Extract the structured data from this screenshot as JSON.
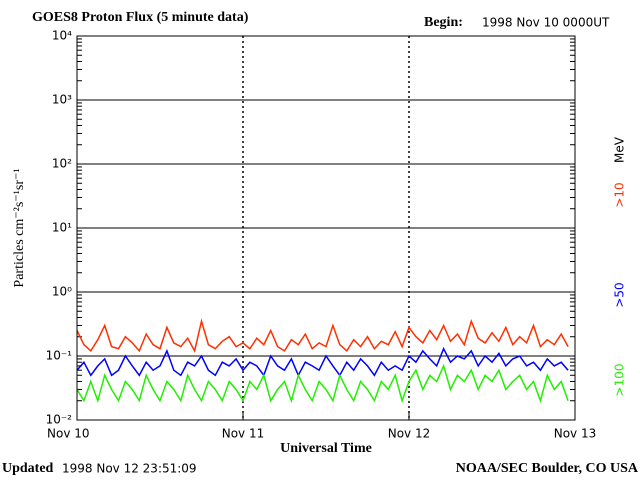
{
  "chart_data": {
    "type": "line",
    "title": "GOES8 Proton Flux (5 minute data)",
    "begin_label": "Begin:",
    "begin_value": "1998 Nov 10 0000UT",
    "ylabel": "Particles cm⁻²s⁻¹sr⁻¹",
    "xlabel": "Universal Time",
    "updated_label": "Updated",
    "updated_value": "1998 Nov 12 23:51:09",
    "credit": "NOAA/SEC Boulder, CO USA",
    "legend_unit": "MeV",
    "log_scale": true,
    "grid": true,
    "ylim": [
      0.01,
      10000
    ],
    "yticks": [
      {
        "value": 0.01,
        "label": "10⁻²"
      },
      {
        "value": 0.1,
        "label": "10⁻¹"
      },
      {
        "value": 1,
        "label": "10⁰"
      },
      {
        "value": 10,
        "label": "10¹"
      },
      {
        "value": 100,
        "label": "10²"
      },
      {
        "value": 1000,
        "label": "10³"
      },
      {
        "value": 10000,
        "label": "10⁴"
      }
    ],
    "xlim": [
      0,
      72
    ],
    "xticks": [
      {
        "value": 0,
        "label": "Nov 10"
      },
      {
        "value": 24,
        "label": "Nov 11"
      },
      {
        "value": 48,
        "label": "Nov 12"
      },
      {
        "value": 72,
        "label": "Nov 13"
      }
    ],
    "x": [
      0,
      1,
      2,
      3,
      4,
      5,
      6,
      7,
      8,
      9,
      10,
      11,
      12,
      13,
      14,
      15,
      16,
      17,
      18,
      19,
      20,
      21,
      22,
      23,
      24,
      25,
      26,
      27,
      28,
      29,
      30,
      31,
      32,
      33,
      34,
      35,
      36,
      37,
      38,
      39,
      40,
      41,
      42,
      43,
      44,
      45,
      46,
      47,
      48,
      49,
      50,
      51,
      52,
      53,
      54,
      55,
      56,
      57,
      58,
      59,
      60,
      61,
      62,
      63,
      64,
      65,
      66,
      67,
      68,
      69,
      70,
      71
    ],
    "series": [
      {
        "name": ">10",
        "color": "#ff3000",
        "values": [
          0.25,
          0.15,
          0.12,
          0.18,
          0.3,
          0.14,
          0.13,
          0.2,
          0.16,
          0.12,
          0.22,
          0.15,
          0.13,
          0.28,
          0.16,
          0.14,
          0.19,
          0.12,
          0.35,
          0.15,
          0.13,
          0.17,
          0.2,
          0.14,
          0.16,
          0.13,
          0.19,
          0.15,
          0.25,
          0.14,
          0.12,
          0.18,
          0.15,
          0.22,
          0.13,
          0.16,
          0.14,
          0.3,
          0.15,
          0.12,
          0.18,
          0.14,
          0.2,
          0.13,
          0.17,
          0.15,
          0.24,
          0.14,
          0.28,
          0.2,
          0.16,
          0.25,
          0.18,
          0.3,
          0.17,
          0.22,
          0.15,
          0.35,
          0.19,
          0.16,
          0.23,
          0.17,
          0.28,
          0.15,
          0.2,
          0.16,
          0.3,
          0.14,
          0.18,
          0.15,
          0.22,
          0.14
        ]
      },
      {
        "name": ">50",
        "color": "#0000ff",
        "values": [
          0.06,
          0.08,
          0.05,
          0.07,
          0.09,
          0.05,
          0.06,
          0.1,
          0.07,
          0.05,
          0.08,
          0.06,
          0.07,
          0.12,
          0.06,
          0.05,
          0.08,
          0.07,
          0.1,
          0.06,
          0.05,
          0.08,
          0.07,
          0.09,
          0.06,
          0.08,
          0.07,
          0.05,
          0.1,
          0.07,
          0.06,
          0.09,
          0.05,
          0.08,
          0.07,
          0.06,
          0.1,
          0.07,
          0.05,
          0.08,
          0.06,
          0.09,
          0.07,
          0.05,
          0.08,
          0.06,
          0.07,
          0.06,
          0.1,
          0.08,
          0.12,
          0.09,
          0.07,
          0.13,
          0.08,
          0.1,
          0.09,
          0.12,
          0.07,
          0.1,
          0.08,
          0.11,
          0.07,
          0.09,
          0.1,
          0.07,
          0.08,
          0.06,
          0.09,
          0.07,
          0.08,
          0.06
        ]
      },
      {
        "name": ">100",
        "color": "#22ee00",
        "values": [
          0.03,
          0.02,
          0.04,
          0.02,
          0.05,
          0.03,
          0.02,
          0.04,
          0.03,
          0.02,
          0.05,
          0.03,
          0.02,
          0.04,
          0.03,
          0.02,
          0.05,
          0.03,
          0.02,
          0.04,
          0.03,
          0.02,
          0.04,
          0.03,
          0.02,
          0.04,
          0.03,
          0.05,
          0.02,
          0.03,
          0.04,
          0.02,
          0.05,
          0.03,
          0.02,
          0.04,
          0.03,
          0.02,
          0.05,
          0.03,
          0.02,
          0.04,
          0.03,
          0.02,
          0.04,
          0.03,
          0.05,
          0.02,
          0.04,
          0.06,
          0.03,
          0.05,
          0.04,
          0.07,
          0.03,
          0.05,
          0.04,
          0.06,
          0.03,
          0.05,
          0.04,
          0.06,
          0.03,
          0.04,
          0.05,
          0.03,
          0.04,
          0.02,
          0.05,
          0.03,
          0.04,
          0.02
        ]
      }
    ]
  }
}
